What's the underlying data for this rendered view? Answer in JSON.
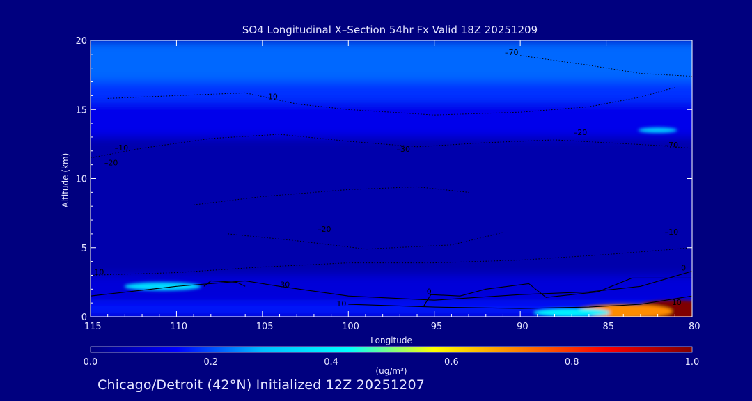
{
  "chart_data": {
    "type": "heatmap",
    "title": "SO4 Longitudinal X–Section 54hr  Fx Valid 18Z 20251209",
    "xlabel": "Longitude",
    "ylabel": "Altitude (km)",
    "xlim": [
      -115,
      -80
    ],
    "ylim": [
      0,
      20
    ],
    "x_ticks": [
      -115,
      -110,
      -105,
      -100,
      -95,
      -90,
      -85,
      -80
    ],
    "x_tick_labels": [
      "–115",
      "–110",
      "–105",
      "–100",
      "–95",
      "–90",
      "–85",
      "–80"
    ],
    "y_ticks": [
      0,
      5,
      10,
      15,
      20
    ],
    "y_tick_labels": [
      "0",
      "5",
      "10",
      "15",
      "20"
    ],
    "colorbar": {
      "units": "(ug/m³)",
      "range": [
        0.0,
        1.0
      ],
      "ticks": [
        0.0,
        0.2,
        0.4,
        0.6,
        0.8,
        1.0
      ],
      "tick_labels": [
        "0.0",
        "0.2",
        "0.4",
        "0.6",
        "0.8",
        "1.0"
      ],
      "colors": [
        "#00007f",
        "#0000ff",
        "#00bfff",
        "#00ffff",
        "#ffff00",
        "#ff7f00",
        "#ff0000",
        "#7f0000"
      ]
    },
    "field_bands": [
      {
        "alt_range": [
          17,
          20
        ],
        "value": 0.22
      },
      {
        "alt_range": [
          15.5,
          17
        ],
        "value": 0.18
      },
      {
        "alt_range": [
          13,
          15.5
        ],
        "value": 0.12
      },
      {
        "alt_range": [
          3,
          13
        ],
        "value": 0.05
      },
      {
        "alt_range": [
          1,
          3
        ],
        "value": 0.1
      },
      {
        "alt_range": [
          0,
          1
        ],
        "value": 0.16
      }
    ],
    "hotspots": [
      {
        "lon": -81,
        "alt": 0.5,
        "value": 1.0
      },
      {
        "lon": -84,
        "alt": 0.4,
        "value": 0.7
      },
      {
        "lon": -87,
        "alt": 0.3,
        "value": 0.4
      },
      {
        "lon": -110.8,
        "alt": 2.2,
        "value": 0.35
      },
      {
        "lon": -82,
        "alt": 13.5,
        "value": 0.3
      }
    ],
    "temperature_contour_labels": [
      {
        "lon": -90.5,
        "alt": 19.1,
        "text": "–70"
      },
      {
        "lon": -104.5,
        "alt": 15.9,
        "text": "–10"
      },
      {
        "lon": -86.5,
        "alt": 13.3,
        "text": "–20"
      },
      {
        "lon": -81.2,
        "alt": 12.4,
        "text": "–70"
      },
      {
        "lon": -113.2,
        "alt": 12.2,
        "text": "–10"
      },
      {
        "lon": -113.8,
        "alt": 11.1,
        "text": "–20"
      },
      {
        "lon": -96.8,
        "alt": 12.1,
        "text": "–30"
      },
      {
        "lon": -101.4,
        "alt": 6.3,
        "text": "–20"
      },
      {
        "lon": -81.2,
        "alt": 6.1,
        "text": "–10"
      },
      {
        "lon": -80.5,
        "alt": 3.5,
        "text": "0"
      },
      {
        "lon": -114.5,
        "alt": 3.2,
        "text": "10"
      },
      {
        "lon": -103.8,
        "alt": 2.3,
        "text": "–30"
      },
      {
        "lon": -95.3,
        "alt": 1.8,
        "text": "0"
      },
      {
        "lon": -100.4,
        "alt": 0.9,
        "text": "10"
      },
      {
        "lon": -80.9,
        "alt": 1.0,
        "text": "10"
      }
    ],
    "solid_contours": [
      [
        [
          -115,
          1.5
        ],
        [
          -110,
          2.2
        ],
        [
          -106,
          2.6
        ],
        [
          -104,
          2.2
        ],
        [
          -100,
          1.5
        ],
        [
          -95,
          1.2
        ],
        [
          -90,
          1.6
        ],
        [
          -86,
          1.8
        ],
        [
          -83,
          2.2
        ],
        [
          -80,
          3.3
        ]
      ],
      [
        [
          -100,
          0.9
        ],
        [
          -95,
          0.7
        ],
        [
          -90,
          0.6
        ],
        [
          -86,
          0.7
        ],
        [
          -83,
          0.9
        ],
        [
          -80,
          1.5
        ]
      ],
      [
        [
          -95.6,
          0.8
        ],
        [
          -95.2,
          1.6
        ],
        [
          -93.5,
          1.5
        ],
        [
          -92,
          2.0
        ],
        [
          -89.5,
          2.4
        ],
        [
          -88.5,
          1.4
        ],
        [
          -85.5,
          1.8
        ],
        [
          -83.5,
          2.8
        ],
        [
          -80,
          2.8
        ]
      ],
      [
        [
          -108.4,
          2.2
        ],
        [
          -108,
          2.6
        ],
        [
          -106.5,
          2.5
        ],
        [
          -106,
          2.2
        ]
      ]
    ],
    "dotted_contours": [
      [
        [
          -115,
          3.0
        ],
        [
          -110,
          3.2
        ],
        [
          -105,
          3.6
        ],
        [
          -100,
          3.9
        ],
        [
          -95,
          3.9
        ],
        [
          -90,
          4.1
        ],
        [
          -85,
          4.5
        ],
        [
          -80,
          5.0
        ]
      ],
      [
        [
          -115,
          11.5
        ],
        [
          -112,
          12.2
        ],
        [
          -108,
          12.9
        ],
        [
          -104,
          13.2
        ],
        [
          -100,
          12.7
        ],
        [
          -96,
          12.3
        ],
        [
          -92,
          12.6
        ],
        [
          -88,
          12.8
        ],
        [
          -85,
          12.6
        ],
        [
          -82,
          12.4
        ],
        [
          -80,
          12.2
        ]
      ],
      [
        [
          -114,
          15.8
        ],
        [
          -110,
          16.0
        ],
        [
          -106,
          16.2
        ],
        [
          -103,
          15.4
        ],
        [
          -100,
          15.0
        ],
        [
          -95,
          14.6
        ],
        [
          -90,
          14.8
        ],
        [
          -86,
          15.2
        ],
        [
          -83,
          15.9
        ],
        [
          -81,
          16.6
        ]
      ],
      [
        [
          -109,
          8.1
        ],
        [
          -105,
          8.7
        ],
        [
          -100,
          9.2
        ],
        [
          -96,
          9.4
        ],
        [
          -93,
          9.0
        ]
      ],
      [
        [
          -107,
          6.0
        ],
        [
          -103,
          5.5
        ],
        [
          -99,
          4.9
        ],
        [
          -94,
          5.2
        ],
        [
          -91,
          6.1
        ]
      ],
      [
        [
          -90,
          18.9
        ],
        [
          -86,
          18.2
        ],
        [
          -83,
          17.6
        ],
        [
          -80,
          17.4
        ]
      ]
    ],
    "footer": "Chicago/Detroit (42°N) Initialized 12Z 20251207"
  }
}
